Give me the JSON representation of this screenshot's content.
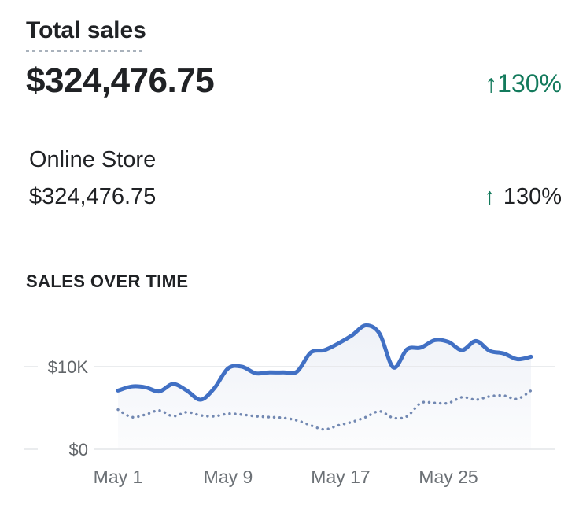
{
  "colors": {
    "text_dark": "#202225",
    "success_green": "#137a5c",
    "line_blue": "#4170c4",
    "dot_blue": "#7288b2",
    "grid_gray": "#e4e5e8",
    "ylabel_gray": "#616569",
    "xlabel_gray": "#6c7176",
    "underline_gray": "#a9b2bc"
  },
  "header": {
    "title": "Total sales",
    "value": "$324,476.75",
    "delta_arrow": "↑",
    "delta_value": "130%"
  },
  "breakdown": {
    "channel": "Online Store",
    "value": "$324,476.75",
    "delta_arrow": "↑",
    "delta_value": "130%"
  },
  "chart_section_title": "SALES OVER TIME",
  "chart_data": {
    "type": "line",
    "title": "Sales over time",
    "xlabel": "",
    "ylabel": "",
    "ylim": [
      0,
      16000
    ],
    "grid": "horizontal-only",
    "legend": "none",
    "x": [
      "May 1",
      "May 2",
      "May 3",
      "May 4",
      "May 5",
      "May 6",
      "May 7",
      "May 8",
      "May 9",
      "May 10",
      "May 11",
      "May 12",
      "May 13",
      "May 14",
      "May 15",
      "May 16",
      "May 17",
      "May 18",
      "May 19",
      "May 20",
      "May 21",
      "May 22",
      "May 23",
      "May 24",
      "May 25",
      "May 26",
      "May 27",
      "May 28",
      "May 29",
      "May 30",
      "May 31"
    ],
    "x_tick_labels": [
      "May 1",
      "May 9",
      "May 17",
      "May 25"
    ],
    "y_ticks": [
      {
        "label": "$10K",
        "value": 10000
      },
      {
        "label": "$0",
        "value": 0
      }
    ],
    "series": [
      {
        "name": "current_period",
        "style": "solid",
        "color": "#4170c4",
        "values": [
          7100,
          7600,
          7500,
          7000,
          7900,
          7100,
          6000,
          7400,
          9800,
          10000,
          9200,
          9300,
          9300,
          9400,
          11700,
          12000,
          12800,
          13800,
          15000,
          14000,
          9900,
          12100,
          12300,
          13200,
          13000,
          12000,
          13100,
          11900,
          11600,
          10900,
          11200
        ]
      },
      {
        "name": "previous_period",
        "style": "dotted",
        "color": "#7288b2",
        "values": [
          4800,
          3900,
          4200,
          4700,
          4000,
          4500,
          4100,
          4000,
          4300,
          4200,
          4000,
          3900,
          3800,
          3500,
          2900,
          2400,
          2900,
          3300,
          3900,
          4600,
          3800,
          4000,
          5600,
          5600,
          5600,
          6300,
          6000,
          6400,
          6500,
          6100,
          7100
        ]
      }
    ]
  }
}
